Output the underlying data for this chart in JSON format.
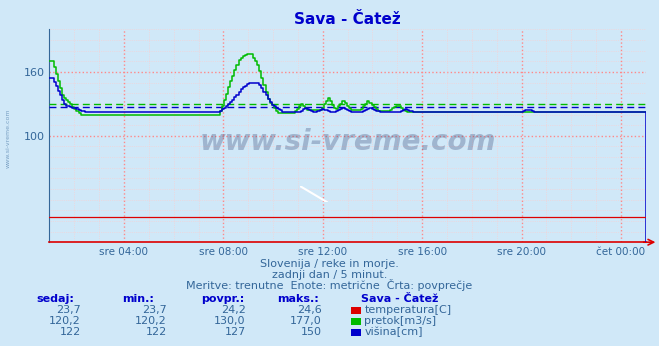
{
  "title": "Sava - Čatež",
  "bg_color": "#d0e8f8",
  "temp_color": "#dd0000",
  "flow_color": "#00bb00",
  "height_color": "#0000cc",
  "avg_flow": 130.0,
  "avg_height": 127.0,
  "ymin": 0,
  "ymax": 200,
  "yticks": [
    100,
    160
  ],
  "x_tick_pos": [
    3,
    7,
    11,
    15,
    19,
    23
  ],
  "x_tick_labels": [
    "sre 04:00",
    "sre 08:00",
    "sre 12:00",
    "sre 16:00",
    "sre 20:00",
    "čet 00:00"
  ],
  "subtitle1": "Slovenija / reke in morje.",
  "subtitle2": "zadnji dan / 5 minut.",
  "subtitle3": "Meritve: trenutne  Enote: metrične  Črta: povprečje",
  "table_headers": [
    "sedaj:",
    "min.:",
    "povpr.:",
    "maks.:"
  ],
  "table_title_col": "Sava - Čatež",
  "row1_vals": [
    "23,7",
    "23,7",
    "24,2",
    "24,6"
  ],
  "row1_label": "temperatura[C]",
  "row2_vals": [
    "120,2",
    "120,2",
    "130,0",
    "177,0"
  ],
  "row2_label": "pretok[m3/s]",
  "row3_vals": [
    "122",
    "122",
    "127",
    "150"
  ],
  "row3_label": "višina[cm]",
  "watermark": "www.si-vreme.com",
  "side_text": "www.si-vreme.com",
  "grid_major_color": "#ff8888",
  "grid_minor_color": "#ffcccc",
  "text_color": "#336699",
  "title_color": "#0000cc"
}
